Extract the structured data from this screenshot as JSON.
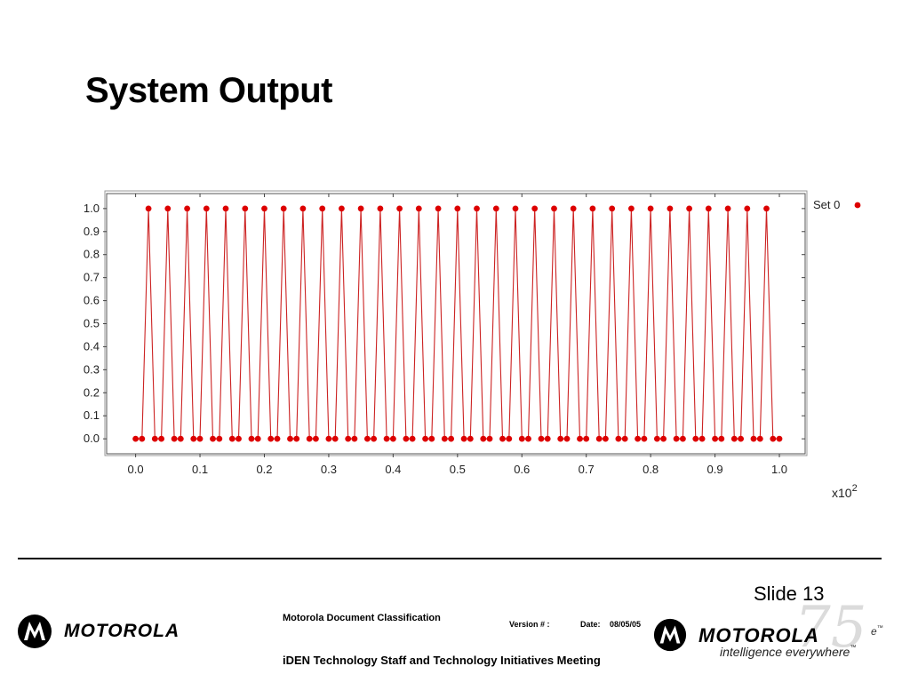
{
  "slide": {
    "title": "System Output",
    "slide_number": "Slide 13"
  },
  "footer": {
    "classification": "Motorola Document Classification",
    "version_label": "Version # :",
    "date_label": "Date:",
    "date_value": "08/05/05",
    "meeting": "iDEN Technology Staff  and Technology Initiatives Meeting",
    "brand": "MOTOROLA",
    "tagline": "intelligence everywhere",
    "tm": "™",
    "anniversary": "75",
    "cut_text": "e"
  },
  "chart_data": {
    "type": "line",
    "title": "",
    "xlabel": "",
    "ylabel": "",
    "x_exponent_base": "x10",
    "x_exponent_power": "2",
    "xlim": [
      -0.045,
      1.04
    ],
    "ylim": [
      -0.065,
      1.065
    ],
    "x_ticks": [
      "0.0",
      "0.1",
      "0.2",
      "0.3",
      "0.4",
      "0.5",
      "0.6",
      "0.7",
      "0.8",
      "0.9",
      "1.0"
    ],
    "y_ticks": [
      "0.0",
      "0.1",
      "0.2",
      "0.3",
      "0.4",
      "0.5",
      "0.6",
      "0.7",
      "0.8",
      "0.9",
      "1.0"
    ],
    "legend": {
      "position": "right",
      "entries": [
        "Set 0"
      ]
    },
    "series": [
      {
        "name": "Set 0",
        "color": "#cc2222",
        "marker_color": "#dd0000",
        "pulse_period": 0.03,
        "pulse_count": 33,
        "first_peak_x": 0.02,
        "zero_x": [
          0.0,
          0.01
        ],
        "zero_after_peak_offsets": [
          0.01,
          0.02
        ],
        "peak_value": 1.0
      }
    ]
  },
  "colors": {
    "plot_frame": "#555555",
    "grid": "#cccccc",
    "footer_rule": "#000000"
  }
}
